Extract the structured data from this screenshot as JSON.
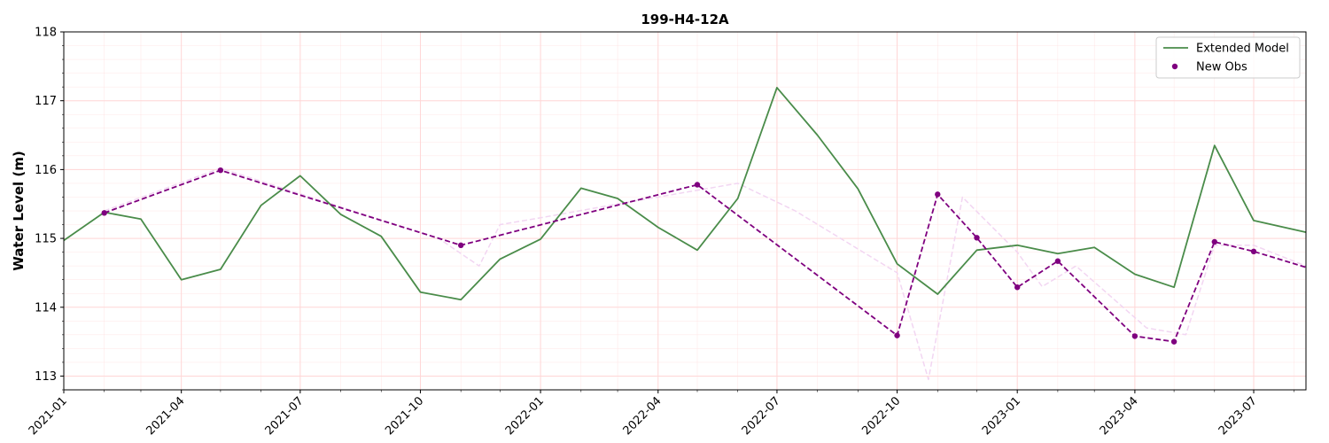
{
  "chart_data": {
    "type": "line",
    "title": "199-H4-12A",
    "xlabel": "",
    "ylabel": "Water Level (m)",
    "xlim": [
      "2021-01-01",
      "2023-08-10"
    ],
    "ylim": [
      112.8,
      118
    ],
    "yticks": [
      113,
      114,
      115,
      116,
      117,
      118
    ],
    "xticks": [
      "2021-01",
      "2021-04",
      "2021-07",
      "2021-10",
      "2022-01",
      "2022-04",
      "2022-07",
      "2022-10",
      "2023-01",
      "2023-04",
      "2023-07"
    ],
    "grid": true,
    "grid_color": "#ffd6d6",
    "legend_position": "top-right",
    "series": [
      {
        "name": "Extended Model",
        "style": "solid-line",
        "color": "#4a8c4a",
        "points": [
          [
            "2021-01-01",
            114.97
          ],
          [
            "2021-02-01",
            115.38
          ],
          [
            "2021-03-01",
            115.28
          ],
          [
            "2021-04-01",
            114.4
          ],
          [
            "2021-05-01",
            114.55
          ],
          [
            "2021-06-01",
            115.48
          ],
          [
            "2021-07-01",
            115.91
          ],
          [
            "2021-08-01",
            115.35
          ],
          [
            "2021-09-01",
            115.03
          ],
          [
            "2021-10-01",
            114.22
          ],
          [
            "2021-11-01",
            114.11
          ],
          [
            "2021-12-01",
            114.7
          ],
          [
            "2022-01-01",
            114.99
          ],
          [
            "2022-02-01",
            115.73
          ],
          [
            "2022-03-01",
            115.58
          ],
          [
            "2022-04-01",
            115.16
          ],
          [
            "2022-05-01",
            114.83
          ],
          [
            "2022-06-01",
            115.58
          ],
          [
            "2022-07-01",
            117.19
          ],
          [
            "2022-08-01",
            116.5
          ],
          [
            "2022-09-01",
            115.72
          ],
          [
            "2022-10-01",
            114.63
          ],
          [
            "2022-11-01",
            114.19
          ],
          [
            "2022-12-01",
            114.83
          ],
          [
            "2023-01-01",
            114.9
          ],
          [
            "2023-02-01",
            114.78
          ],
          [
            "2023-03-01",
            114.87
          ],
          [
            "2023-04-01",
            114.48
          ],
          [
            "2023-05-01",
            114.29
          ],
          [
            "2023-06-01",
            116.35
          ],
          [
            "2023-07-01",
            115.26
          ],
          [
            "2023-08-10",
            115.09
          ]
        ]
      },
      {
        "name": "New Obs",
        "style": "dashed-line-with-markers",
        "color": "#7f007f",
        "points": [
          [
            "2021-02-01",
            115.37
          ],
          [
            "2021-05-01",
            115.99
          ],
          [
            "2021-11-01",
            114.9
          ],
          [
            "2022-05-01",
            115.78
          ],
          [
            "2022-10-01",
            113.59
          ],
          [
            "2022-11-01",
            115.64
          ],
          [
            "2022-12-01",
            115.01
          ],
          [
            "2023-01-01",
            114.29
          ],
          [
            "2023-02-01",
            114.67
          ],
          [
            "2023-04-01",
            113.58
          ],
          [
            "2023-05-01",
            113.5
          ],
          [
            "2023-06-01",
            114.95
          ],
          [
            "2023-07-01",
            114.81
          ],
          [
            "2023-08-10",
            114.58
          ]
        ]
      },
      {
        "name": "",
        "style": "faint-dashed-line",
        "color": "#f2d6f2",
        "points": [
          [
            "2021-02-01",
            115.4
          ],
          [
            "2021-05-01",
            116.02
          ],
          [
            "2021-10-15",
            115.0
          ],
          [
            "2021-11-15",
            114.6
          ],
          [
            "2021-12-01",
            115.2
          ],
          [
            "2022-01-01",
            115.3
          ],
          [
            "2022-03-01",
            115.5
          ],
          [
            "2022-06-01",
            115.8
          ],
          [
            "2022-07-15",
            115.4
          ],
          [
            "2022-10-01",
            114.5
          ],
          [
            "2022-10-25",
            112.95
          ],
          [
            "2022-11-20",
            115.6
          ],
          [
            "2023-01-01",
            114.8
          ],
          [
            "2023-01-20",
            114.3
          ],
          [
            "2023-02-15",
            114.6
          ],
          [
            "2023-04-10",
            113.7
          ],
          [
            "2023-05-10",
            113.6
          ],
          [
            "2023-06-01",
            114.9
          ],
          [
            "2023-07-01",
            114.9
          ],
          [
            "2023-08-10",
            114.6
          ]
        ]
      }
    ]
  }
}
